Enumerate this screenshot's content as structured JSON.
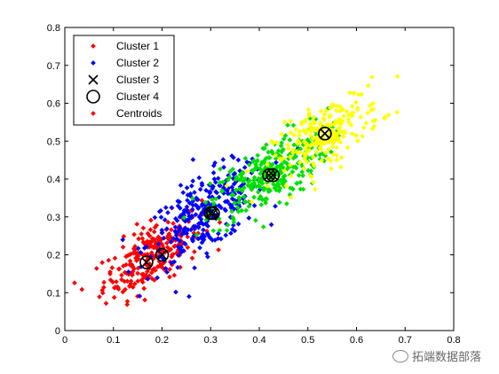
{
  "chart_data": {
    "type": "scatter",
    "title": "",
    "xlabel": "",
    "ylabel": "",
    "xlim": [
      0,
      0.8
    ],
    "ylim": [
      0,
      0.8
    ],
    "xticks": [
      "0",
      "0.1",
      "0.2",
      "0.3",
      "0.4",
      "0.5",
      "0.6",
      "0.7",
      "0.8"
    ],
    "yticks": [
      "0",
      "0.1",
      "0.2",
      "0.3",
      "0.4",
      "0.5",
      "0.6",
      "0.7",
      "0.8"
    ],
    "grid": false,
    "legend_position": "top-left",
    "series": [
      {
        "name": "Cluster 1",
        "color": "#ff0000",
        "marker": "dot",
        "center": [
          0.18,
          0.2
        ],
        "spread": [
          0.05,
          0.055
        ],
        "count": 260
      },
      {
        "name": "Cluster 2",
        "color": "#0000ff",
        "marker": "dot",
        "center": [
          0.29,
          0.31
        ],
        "spread": [
          0.06,
          0.065
        ],
        "count": 300
      },
      {
        "name": "Cluster 4",
        "color": "#00e000",
        "marker": "dot",
        "center": [
          0.42,
          0.41
        ],
        "spread": [
          0.06,
          0.06
        ],
        "count": 300
      },
      {
        "name": "Cluster 3",
        "color": "#ffff00",
        "marker": "dot",
        "center": [
          0.54,
          0.52
        ],
        "spread": [
          0.055,
          0.055
        ],
        "count": 230
      }
    ],
    "centroids": [
      {
        "x": 0.2,
        "y": 0.2
      },
      {
        "x": 0.168,
        "y": 0.18
      },
      {
        "x": 0.305,
        "y": 0.31
      },
      {
        "x": 0.3,
        "y": 0.31
      },
      {
        "x": 0.428,
        "y": 0.41
      },
      {
        "x": 0.42,
        "y": 0.41
      },
      {
        "x": 0.535,
        "y": 0.52
      },
      {
        "x": 0.535,
        "y": 0.52
      }
    ],
    "legend": [
      {
        "label": "Cluster 1",
        "marker": "dot",
        "color": "#ff0000"
      },
      {
        "label": "Cluster 2",
        "marker": "dot",
        "color": "#0000ff"
      },
      {
        "label": "Cluster 3",
        "marker": "x",
        "color": "#000000"
      },
      {
        "label": "Cluster 4",
        "marker": "circle",
        "color": "#000000"
      },
      {
        "label": "Centroids",
        "marker": "dot",
        "color": "#ff0000"
      }
    ]
  },
  "watermark": {
    "text": "拓端数据部落",
    "icon": "wechat-icon"
  }
}
